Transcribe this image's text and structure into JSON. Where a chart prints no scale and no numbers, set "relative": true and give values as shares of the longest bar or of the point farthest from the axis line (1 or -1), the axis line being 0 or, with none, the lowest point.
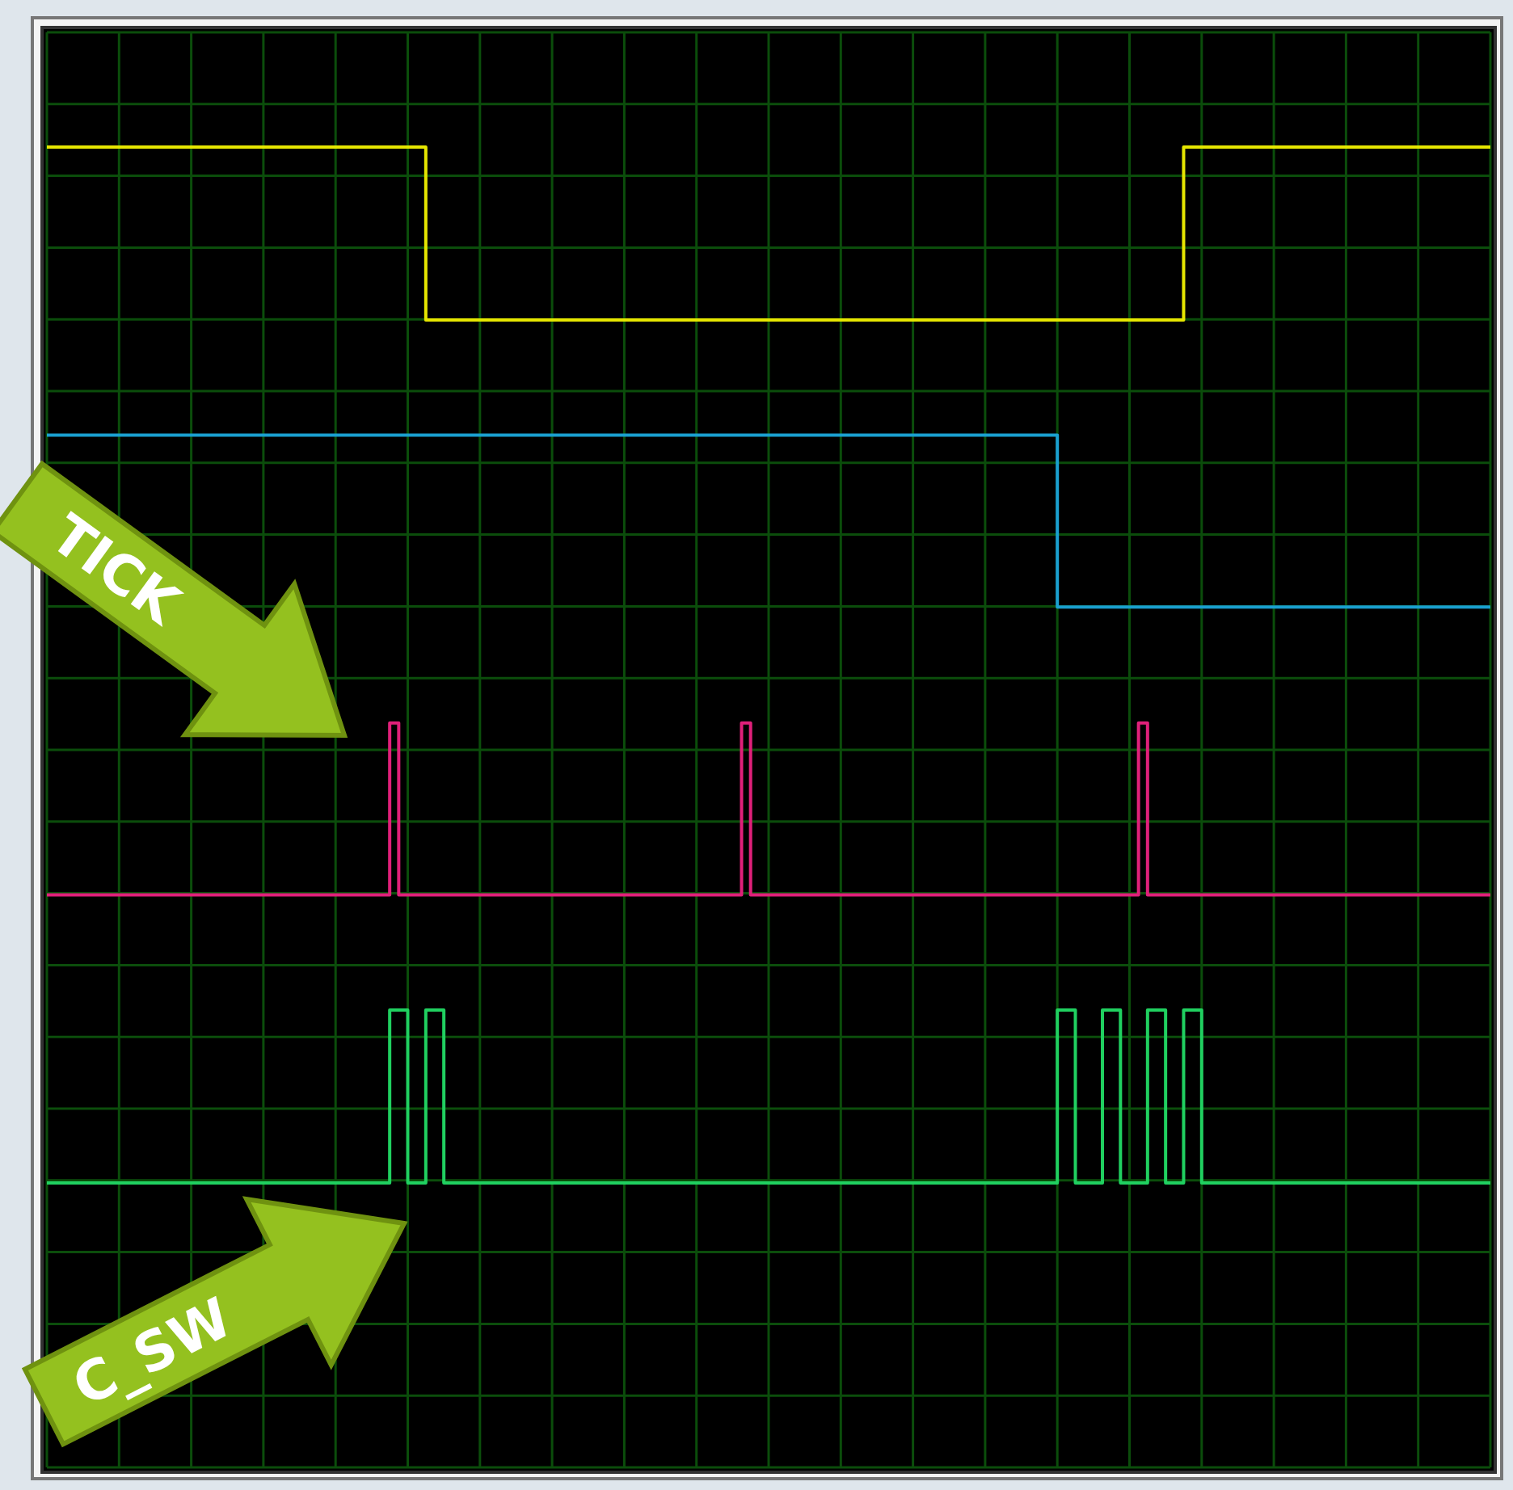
{
  "chart_data": {
    "type": "step",
    "relative": true,
    "grid": true,
    "marker": "none",
    "line_style": "solid",
    "categories": [
      null,
      null,
      null,
      null,
      null,
      null,
      null,
      null,
      null,
      null,
      null,
      null,
      null,
      null,
      null,
      null,
      null,
      null,
      null,
      null,
      null,
      null,
      null,
      null,
      null,
      null,
      null,
      null,
      null,
      null,
      null,
      null,
      null,
      null,
      null,
      null,
      null,
      null,
      null,
      null,
      null,
      null,
      null,
      null,
      null,
      null,
      null,
      null,
      null,
      null,
      null,
      null,
      null,
      null,
      null,
      null,
      null,
      null,
      null,
      null,
      null,
      null,
      null,
      null,
      null,
      null,
      null,
      null,
      null,
      null,
      null,
      null,
      null,
      null,
      null,
      null,
      null,
      null,
      null,
      null,
      null,
      null,
      null,
      null,
      null,
      null,
      null,
      null,
      null,
      null,
      null,
      null,
      null,
      null,
      null,
      null,
      null,
      null,
      null,
      null,
      null,
      null,
      null,
      null,
      null,
      null,
      null,
      null,
      null,
      null,
      null,
      null,
      null,
      null,
      null,
      null,
      null,
      null,
      null,
      null,
      null,
      null,
      null,
      null,
      null,
      null,
      null,
      null,
      null,
      null,
      null,
      null,
      null,
      null,
      null,
      null,
      null,
      null,
      null,
      null,
      null,
      null,
      null,
      null,
      null,
      null,
      null,
      null,
      null,
      null,
      null,
      null,
      null,
      null,
      null,
      null,
      null,
      null,
      null,
      null,
      null
    ],
    "series": [
      {
        "color": "#e6e600",
        "values": [
          1,
          1,
          1,
          1,
          1,
          1,
          1,
          1,
          1,
          1,
          1,
          1,
          1,
          1,
          1,
          1,
          1,
          1,
          1,
          1,
          1,
          1,
          1,
          1,
          1,
          1,
          1,
          1,
          1,
          1,
          1,
          1,
          1,
          1,
          1,
          1,
          1,
          1,
          1,
          1,
          1,
          1,
          0.833,
          0.833,
          0.833,
          0.833,
          0.833,
          0.833,
          0.833,
          0.833,
          0.833,
          0.833,
          0.833,
          0.833,
          0.833,
          0.833,
          0.833,
          0.833,
          0.833,
          0.833,
          0.833,
          0.833,
          0.833,
          0.833,
          0.833,
          0.833,
          0.833,
          0.833,
          0.833,
          0.833,
          0.833,
          0.833,
          0.833,
          0.833,
          0.833,
          0.833,
          0.833,
          0.833,
          0.833,
          0.833,
          0.833,
          0.833,
          0.833,
          0.833,
          0.833,
          0.833,
          0.833,
          0.833,
          0.833,
          0.833,
          0.833,
          0.833,
          0.833,
          0.833,
          0.833,
          0.833,
          0.833,
          0.833,
          0.833,
          0.833,
          0.833,
          0.833,
          0.833,
          0.833,
          0.833,
          0.833,
          0.833,
          0.833,
          0.833,
          0.833,
          0.833,
          0.833,
          0.833,
          0.833,
          0.833,
          0.833,
          0.833,
          0.833,
          0.833,
          0.833,
          0.833,
          0.833,
          0.833,
          0.833,
          0.833,
          0.833,
          1,
          1,
          1,
          1,
          1,
          1,
          1,
          1,
          1,
          1,
          1,
          1,
          1,
          1,
          1,
          1,
          1,
          1,
          1,
          1,
          1,
          1,
          1,
          1,
          1,
          1,
          1,
          1,
          1,
          1,
          1,
          1,
          1,
          1,
          1
        ]
      },
      {
        "color": "#1aa0d0",
        "values": [
          0.722,
          0.722,
          0.722,
          0.722,
          0.722,
          0.722,
          0.722,
          0.722,
          0.722,
          0.722,
          0.722,
          0.722,
          0.722,
          0.722,
          0.722,
          0.722,
          0.722,
          0.722,
          0.722,
          0.722,
          0.722,
          0.722,
          0.722,
          0.722,
          0.722,
          0.722,
          0.722,
          0.722,
          0.722,
          0.722,
          0.722,
          0.722,
          0.722,
          0.722,
          0.722,
          0.722,
          0.722,
          0.722,
          0.722,
          0.722,
          0.722,
          0.722,
          0.722,
          0.722,
          0.722,
          0.722,
          0.722,
          0.722,
          0.722,
          0.722,
          0.722,
          0.722,
          0.722,
          0.722,
          0.722,
          0.722,
          0.722,
          0.722,
          0.722,
          0.722,
          0.722,
          0.722,
          0.722,
          0.722,
          0.722,
          0.722,
          0.722,
          0.722,
          0.722,
          0.722,
          0.722,
          0.722,
          0.722,
          0.722,
          0.722,
          0.722,
          0.722,
          0.722,
          0.722,
          0.722,
          0.722,
          0.722,
          0.722,
          0.722,
          0.722,
          0.722,
          0.722,
          0.722,
          0.722,
          0.722,
          0.722,
          0.722,
          0.722,
          0.722,
          0.722,
          0.722,
          0.722,
          0.722,
          0.722,
          0.722,
          0.722,
          0.722,
          0.722,
          0.722,
          0.722,
          0.722,
          0.722,
          0.722,
          0.722,
          0.722,
          0.722,
          0.722,
          0.556,
          0.556,
          0.556,
          0.556,
          0.556,
          0.556,
          0.556,
          0.556,
          0.556,
          0.556,
          0.556,
          0.556,
          0.556,
          0.556,
          0.556,
          0.556,
          0.556,
          0.556,
          0.556,
          0.556,
          0.556,
          0.556,
          0.556,
          0.556,
          0.556,
          0.556,
          0.556,
          0.556,
          0.556,
          0.556,
          0.556,
          0.556,
          0.556,
          0.556,
          0.556,
          0.556,
          0.556,
          0.556,
          0.556,
          0.556,
          0.556,
          0.556,
          0.556,
          0.556,
          0.556,
          0.556,
          0.556,
          0.556,
          0.556
        ]
      },
      {
        "color": "#e0207a",
        "values": [
          0.278,
          0.278,
          0.278,
          0.278,
          0.278,
          0.278,
          0.278,
          0.278,
          0.278,
          0.278,
          0.278,
          0.278,
          0.278,
          0.278,
          0.278,
          0.278,
          0.278,
          0.278,
          0.278,
          0.278,
          0.278,
          0.278,
          0.278,
          0.278,
          0.278,
          0.278,
          0.278,
          0.278,
          0.278,
          0.278,
          0.278,
          0.278,
          0.278,
          0.278,
          0.278,
          0.278,
          0.278,
          0.278,
          0.444,
          0.278,
          0.278,
          0.278,
          0.278,
          0.278,
          0.278,
          0.278,
          0.278,
          0.278,
          0.278,
          0.278,
          0.278,
          0.278,
          0.278,
          0.278,
          0.278,
          0.278,
          0.278,
          0.278,
          0.278,
          0.278,
          0.278,
          0.278,
          0.278,
          0.278,
          0.278,
          0.278,
          0.278,
          0.278,
          0.278,
          0.278,
          0.278,
          0.278,
          0.278,
          0.278,
          0.278,
          0.278,
          0.278,
          0.444,
          0.278,
          0.278,
          0.278,
          0.278,
          0.278,
          0.278,
          0.278,
          0.278,
          0.278,
          0.278,
          0.278,
          0.278,
          0.278,
          0.278,
          0.278,
          0.278,
          0.278,
          0.278,
          0.278,
          0.278,
          0.278,
          0.278,
          0.278,
          0.278,
          0.278,
          0.278,
          0.278,
          0.278,
          0.278,
          0.278,
          0.278,
          0.278,
          0.278,
          0.278,
          0.278,
          0.278,
          0.278,
          0.278,
          0.278,
          0.278,
          0.278,
          0.278,
          0.278,
          0.444,
          0.278,
          0.278,
          0.278,
          0.278,
          0.278,
          0.278,
          0.278,
          0.278,
          0.278,
          0.278,
          0.278,
          0.278,
          0.278,
          0.278,
          0.278,
          0.278,
          0.278,
          0.278,
          0.278,
          0.278,
          0.278,
          0.278,
          0.278,
          0.278,
          0.278,
          0.278,
          0.278,
          0.278,
          0.278,
          0.278,
          0.278,
          0.278,
          0.278,
          0.278,
          0.278,
          0.278,
          0.278,
          0.278,
          0.278
        ]
      },
      {
        "color": "#20d060",
        "values": [
          0,
          0,
          0,
          0,
          0,
          0,
          0,
          0,
          0,
          0,
          0,
          0,
          0,
          0,
          0,
          0,
          0,
          0,
          0,
          0,
          0,
          0,
          0,
          0,
          0,
          0,
          0,
          0,
          0,
          0,
          0,
          0,
          0,
          0,
          0,
          0,
          0,
          0,
          0.167,
          0.167,
          0,
          0,
          0.167,
          0.167,
          0,
          0,
          0,
          0,
          0,
          0,
          0,
          0,
          0,
          0,
          0,
          0,
          0,
          0,
          0,
          0,
          0,
          0,
          0,
          0,
          0,
          0,
          0,
          0,
          0,
          0,
          0,
          0,
          0,
          0,
          0,
          0,
          0,
          0,
          0,
          0,
          0,
          0,
          0,
          0,
          0,
          0,
          0,
          0,
          0,
          0,
          0,
          0,
          0,
          0,
          0,
          0,
          0,
          0,
          0,
          0,
          0,
          0,
          0,
          0,
          0,
          0,
          0,
          0,
          0,
          0,
          0,
          0,
          0.167,
          0.167,
          0,
          0,
          0,
          0.167,
          0.167,
          0,
          0,
          0,
          0.167,
          0.167,
          0,
          0,
          0.167,
          0.167,
          0,
          0,
          0,
          0,
          0,
          0,
          0,
          0,
          0,
          0,
          0,
          0,
          0,
          0,
          0,
          0,
          0,
          0,
          0,
          0,
          0,
          0,
          0,
          0,
          0,
          0,
          0,
          0,
          0,
          0,
          0,
          0,
          0
        ]
      }
    ],
    "annotations": [
      "TICK",
      "C_SW"
    ]
  }
}
